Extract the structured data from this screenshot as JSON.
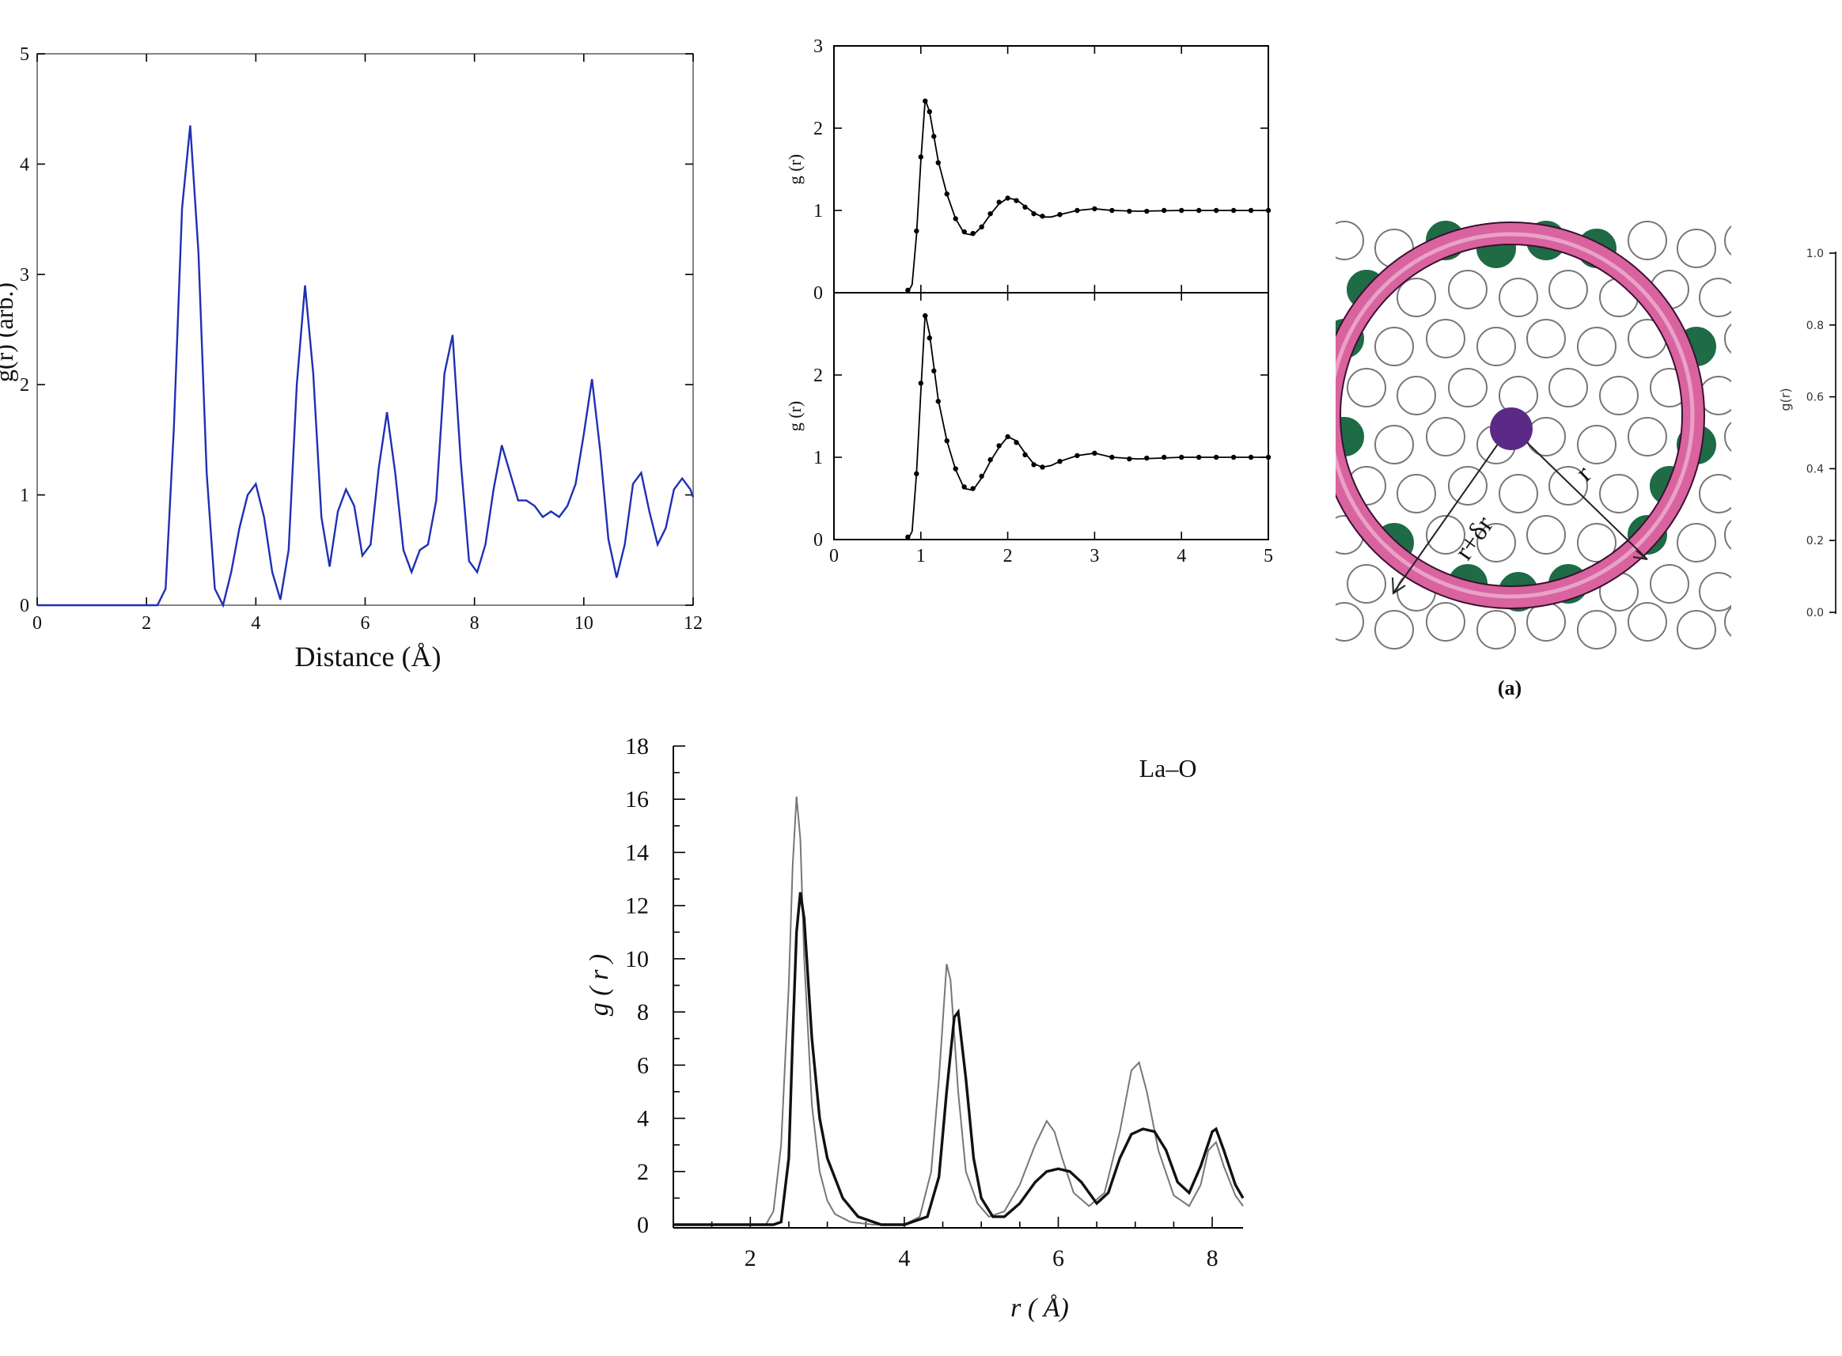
{
  "colors": {
    "blue": "#1f2fb4",
    "pink": "#d9639f",
    "green": "#1e6b45",
    "purple": "#5b2a86",
    "gray": "#777777"
  },
  "chart_data": [
    {
      "id": "chart1",
      "type": "line",
      "title": "",
      "xlabel": "Distance (Å)",
      "ylabel": "g(r) (arb.)",
      "xlim": [
        0,
        12
      ],
      "ylim": [
        0,
        5
      ],
      "xticks": [
        "0",
        "2",
        "4",
        "6",
        "8",
        "10",
        "12"
      ],
      "yticks": [
        "0",
        "1",
        "2",
        "3",
        "4",
        "5"
      ],
      "series": [
        {
          "name": "g(r)",
          "x": [
            0,
            2.2,
            2.35,
            2.5,
            2.65,
            2.8,
            2.95,
            3.1,
            3.25,
            3.4,
            3.55,
            3.7,
            3.85,
            4.0,
            4.15,
            4.3,
            4.45,
            4.6,
            4.75,
            4.9,
            5.05,
            5.2,
            5.35,
            5.5,
            5.65,
            5.8,
            5.95,
            6.1,
            6.25,
            6.4,
            6.55,
            6.7,
            6.85,
            7.0,
            7.15,
            7.3,
            7.45,
            7.6,
            7.75,
            7.9,
            8.05,
            8.2,
            8.35,
            8.5,
            8.65,
            8.8,
            8.95,
            9.1,
            9.25,
            9.4,
            9.55,
            9.7,
            9.85,
            10.0,
            10.15,
            10.3,
            10.45,
            10.6,
            10.75,
            10.9,
            11.05,
            11.2,
            11.35,
            11.5,
            11.65,
            11.8,
            11.95,
            12.0
          ],
          "y": [
            0,
            0,
            0.15,
            1.6,
            3.6,
            4.35,
            3.2,
            1.2,
            0.15,
            0,
            0.3,
            0.7,
            1.0,
            1.1,
            0.8,
            0.3,
            0.05,
            0.5,
            2.0,
            2.9,
            2.1,
            0.8,
            0.35,
            0.85,
            1.05,
            0.9,
            0.45,
            0.55,
            1.25,
            1.75,
            1.2,
            0.5,
            0.3,
            0.5,
            0.55,
            0.95,
            2.1,
            2.45,
            1.3,
            0.4,
            0.3,
            0.55,
            1.05,
            1.45,
            1.2,
            0.95,
            0.95,
            0.9,
            0.8,
            0.85,
            0.8,
            0.9,
            1.1,
            1.55,
            2.05,
            1.4,
            0.6,
            0.25,
            0.55,
            1.1,
            1.2,
            0.85,
            0.55,
            0.7,
            1.05,
            1.15,
            1.05,
            0.98
          ]
        }
      ]
    },
    {
      "id": "chart2a",
      "type": "line",
      "title": "",
      "xlabel": "",
      "ylabel": "g (r)",
      "xlim": [
        0,
        5
      ],
      "ylim": [
        0,
        3
      ],
      "yticks": [
        "0",
        "1",
        "2",
        "3"
      ],
      "series": [
        {
          "name": "curve",
          "x": [
            0,
            0.85,
            0.9,
            0.95,
            1.0,
            1.05,
            1.1,
            1.15,
            1.2,
            1.3,
            1.4,
            1.5,
            1.6,
            1.7,
            1.8,
            1.9,
            2.0,
            2.1,
            2.2,
            2.3,
            2.4,
            2.5,
            2.6,
            2.8,
            3.0,
            3.2,
            3.5,
            4.0,
            4.5,
            5.0
          ],
          "y": [
            0,
            0,
            0.1,
            0.7,
            1.6,
            2.35,
            2.2,
            1.9,
            1.6,
            1.2,
            0.9,
            0.72,
            0.7,
            0.8,
            0.95,
            1.08,
            1.15,
            1.13,
            1.05,
            0.97,
            0.92,
            0.92,
            0.95,
            1.0,
            1.02,
            1.0,
            0.99,
            1.0,
            1.0,
            1.0
          ]
        },
        {
          "name": "points",
          "x": [
            0.85,
            0.95,
            1.0,
            1.05,
            1.1,
            1.15,
            1.2,
            1.3,
            1.4,
            1.5,
            1.6,
            1.7,
            1.8,
            1.9,
            2.0,
            2.1,
            2.2,
            2.3,
            2.4,
            2.6,
            2.8,
            3.0,
            3.2,
            3.4,
            3.6,
            3.8,
            4.0,
            4.2,
            4.4,
            4.6,
            4.8,
            5.0
          ],
          "y": [
            0.03,
            0.75,
            1.65,
            2.33,
            2.2,
            1.9,
            1.58,
            1.2,
            0.9,
            0.74,
            0.72,
            0.8,
            0.96,
            1.1,
            1.15,
            1.12,
            1.04,
            0.96,
            0.93,
            0.95,
            1.0,
            1.02,
            1.0,
            0.99,
            0.99,
            1.0,
            1.0,
            1.0,
            1.0,
            1.0,
            1.0,
            1.0
          ]
        }
      ]
    },
    {
      "id": "chart2b",
      "type": "line",
      "title": "",
      "xlabel": "",
      "ylabel": "g (r)",
      "xlim": [
        0,
        5
      ],
      "ylim": [
        0,
        3
      ],
      "xticks": [
        "0",
        "1",
        "2",
        "3",
        "4",
        "5"
      ],
      "yticks": [
        "0",
        "1",
        "2"
      ],
      "series": [
        {
          "name": "curve",
          "x": [
            0,
            0.85,
            0.9,
            0.95,
            1.0,
            1.05,
            1.1,
            1.15,
            1.2,
            1.3,
            1.4,
            1.5,
            1.6,
            1.7,
            1.8,
            1.9,
            2.0,
            2.1,
            2.2,
            2.3,
            2.4,
            2.5,
            2.6,
            2.8,
            3.0,
            3.2,
            3.5,
            4.0,
            4.5,
            5.0
          ],
          "y": [
            0,
            0,
            0.1,
            0.8,
            1.8,
            2.75,
            2.5,
            2.1,
            1.7,
            1.2,
            0.85,
            0.62,
            0.6,
            0.75,
            0.95,
            1.12,
            1.25,
            1.2,
            1.05,
            0.92,
            0.88,
            0.9,
            0.95,
            1.02,
            1.05,
            1.0,
            0.98,
            1.0,
            1.0,
            1.0
          ]
        },
        {
          "name": "points",
          "x": [
            0.85,
            0.95,
            1.0,
            1.05,
            1.1,
            1.15,
            1.2,
            1.3,
            1.4,
            1.5,
            1.6,
            1.7,
            1.8,
            1.9,
            2.0,
            2.1,
            2.2,
            2.3,
            2.4,
            2.6,
            2.8,
            3.0,
            3.2,
            3.4,
            3.6,
            3.8,
            4.0,
            4.2,
            4.4,
            4.6,
            4.8,
            5.0
          ],
          "y": [
            0.03,
            0.8,
            1.9,
            2.72,
            2.45,
            2.05,
            1.68,
            1.2,
            0.86,
            0.64,
            0.62,
            0.77,
            0.97,
            1.14,
            1.25,
            1.18,
            1.03,
            0.91,
            0.88,
            0.95,
            1.02,
            1.05,
            1.0,
            0.98,
            0.99,
            1.0,
            1.0,
            1.0,
            1.0,
            1.0,
            1.0,
            1.0
          ]
        }
      ]
    },
    {
      "id": "chart4",
      "type": "line",
      "title": "",
      "xlabel": "",
      "ylabel": "g(r)",
      "xlim": [
        0,
        10
      ],
      "ylim": [
        0,
        1.0
      ],
      "yticks": [
        "0.0",
        "0.2",
        "0.4",
        "0.6",
        "0.8",
        "1.0"
      ],
      "series": []
    },
    {
      "id": "chart3",
      "type": "line",
      "title": "",
      "annotation": "La–O",
      "xlabel": "r ( Å)",
      "ylabel": "g ( r )",
      "xlim": [
        1,
        8.4
      ],
      "ylim": [
        0,
        18
      ],
      "xticks": [
        "2",
        "4",
        "6",
        "8"
      ],
      "yticks": [
        "0",
        "2",
        "4",
        "6",
        "8",
        "10",
        "12",
        "14",
        "16",
        "18"
      ],
      "series": [
        {
          "name": "thin",
          "x": [
            1.0,
            2.2,
            2.3,
            2.4,
            2.5,
            2.55,
            2.6,
            2.65,
            2.7,
            2.8,
            2.9,
            3.0,
            3.1,
            3.3,
            3.6,
            4.0,
            4.2,
            4.35,
            4.45,
            4.55,
            4.6,
            4.7,
            4.8,
            4.95,
            5.1,
            5.3,
            5.5,
            5.7,
            5.85,
            5.95,
            6.05,
            6.2,
            6.4,
            6.6,
            6.8,
            6.95,
            7.05,
            7.15,
            7.3,
            7.5,
            7.7,
            7.85,
            7.95,
            8.05,
            8.15,
            8.3,
            8.4
          ],
          "y": [
            0,
            0,
            0.5,
            3.0,
            9.0,
            13.5,
            16.1,
            14.5,
            10.0,
            4.5,
            2.0,
            0.9,
            0.4,
            0.1,
            0,
            0,
            0.3,
            2.0,
            5.5,
            9.8,
            9.2,
            5.0,
            2.0,
            0.8,
            0.3,
            0.5,
            1.5,
            3.0,
            3.9,
            3.5,
            2.5,
            1.2,
            0.7,
            1.2,
            3.5,
            5.8,
            6.1,
            5.0,
            2.8,
            1.1,
            0.7,
            1.5,
            2.8,
            3.1,
            2.2,
            1.1,
            0.7
          ]
        },
        {
          "name": "thick",
          "x": [
            1.0,
            2.3,
            2.4,
            2.5,
            2.55,
            2.6,
            2.65,
            2.7,
            2.8,
            2.9,
            3.0,
            3.2,
            3.4,
            3.7,
            4.0,
            4.3,
            4.45,
            4.55,
            4.65,
            4.7,
            4.8,
            4.9,
            5.0,
            5.15,
            5.3,
            5.5,
            5.7,
            5.85,
            6.0,
            6.15,
            6.3,
            6.5,
            6.65,
            6.8,
            6.95,
            7.1,
            7.25,
            7.4,
            7.55,
            7.7,
            7.85,
            8.0,
            8.05,
            8.15,
            8.3,
            8.4
          ],
          "y": [
            0,
            0,
            0.1,
            2.5,
            7.0,
            11.0,
            12.5,
            11.5,
            7.0,
            4.0,
            2.5,
            1.0,
            0.3,
            0,
            0,
            0.3,
            1.8,
            5.0,
            7.8,
            8.0,
            5.5,
            2.5,
            1.0,
            0.3,
            0.3,
            0.8,
            1.6,
            2.0,
            2.1,
            2.0,
            1.6,
            0.8,
            1.2,
            2.5,
            3.4,
            3.6,
            3.5,
            2.8,
            1.6,
            1.2,
            2.2,
            3.5,
            3.6,
            2.8,
            1.5,
            1.0
          ]
        }
      ]
    }
  ],
  "diagram": {
    "labels": {
      "r": "r",
      "r_dr": "r+δr",
      "caption": "(a)"
    }
  }
}
